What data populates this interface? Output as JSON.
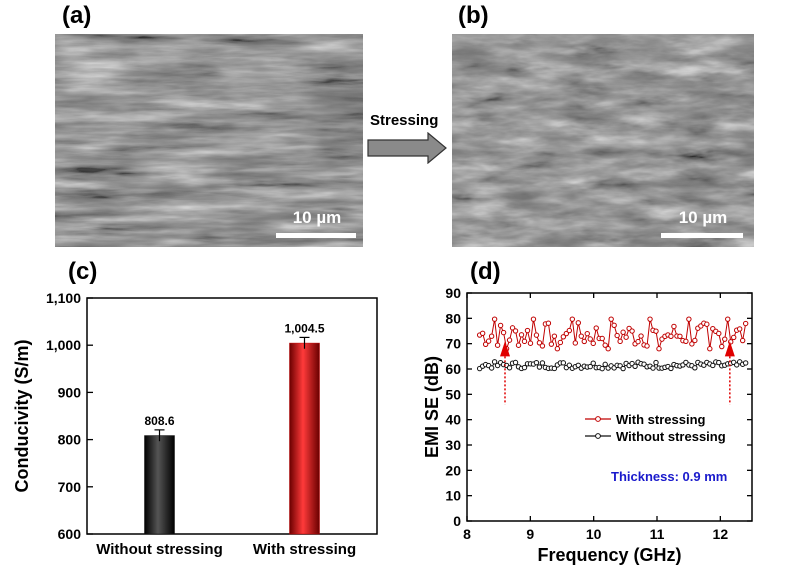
{
  "panels": {
    "a": {
      "label": "(a)",
      "scale_bar": "10 µm"
    },
    "b": {
      "label": "(b)",
      "scale_bar": "10 µm"
    },
    "c": {
      "label": "(c)"
    },
    "d": {
      "label": "(d)"
    }
  },
  "process_arrow": {
    "label": "Stressing"
  },
  "colors": {
    "red": "#c00000",
    "black": "#111111",
    "blue": "#1a1acc",
    "sem_base": "#707070"
  },
  "chart_data": [
    {
      "type": "bar",
      "title": "",
      "xlabel": "",
      "ylabel": "Conducivity (S/m)",
      "categories": [
        "Without stressing",
        "With stressing"
      ],
      "values": [
        808.6,
        1004.5
      ],
      "value_labels": [
        "808.6",
        "1,004.5"
      ],
      "errors": [
        12,
        12
      ],
      "ylim": [
        600,
        1100
      ],
      "yticks": [
        600,
        700,
        800,
        900,
        1000,
        1100
      ],
      "ytick_labels": [
        "600",
        "700",
        "800",
        "900",
        "1,000",
        "1,100"
      ],
      "bar_colors": [
        "#111111",
        "#c00000"
      ]
    },
    {
      "type": "line",
      "title": "",
      "xlabel": "Frequency (GHz)",
      "ylabel": "EMI SE (dB)",
      "xlim": [
        8,
        12.5
      ],
      "ylim": [
        0,
        90
      ],
      "xticks": [
        8,
        9,
        10,
        11,
        12
      ],
      "yticks": [
        0,
        10,
        20,
        30,
        40,
        50,
        60,
        70,
        80,
        90
      ],
      "legend_position": "center-right",
      "series": [
        {
          "name": "With stressing",
          "color": "#c00000",
          "x_start": 8.2,
          "x_end": 12.4,
          "mean": 73.5,
          "min": 68,
          "max": 81
        },
        {
          "name": "Without stressing",
          "color": "#111111",
          "x_start": 8.2,
          "x_end": 12.4,
          "mean": 61.5,
          "min": 59.5,
          "max": 64
        }
      ],
      "annotation": "Thickness: 0.9 mm",
      "markers": [
        8.6,
        12.15
      ]
    }
  ]
}
